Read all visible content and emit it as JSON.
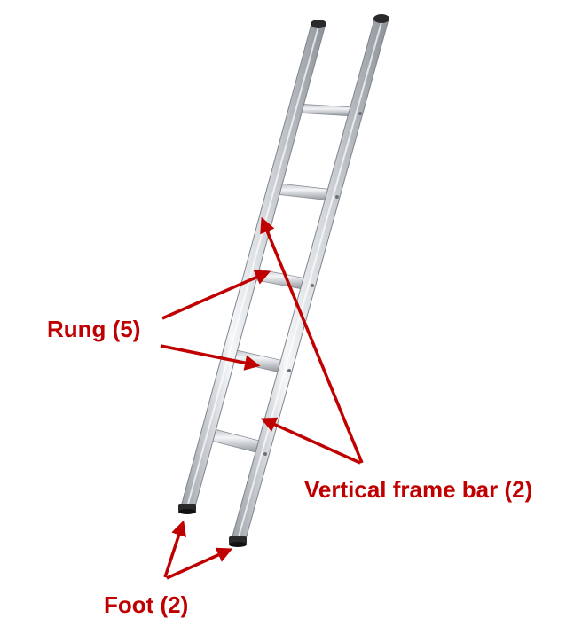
{
  "labels": {
    "rung": "Rung (5)",
    "frame": "Vertical frame bar (2)",
    "foot": "Foot (2)"
  },
  "colors": {
    "annotation": "#c00000",
    "background": "#ffffff",
    "aluminum_light": "#f2f4f6",
    "aluminum_mid": "#c9cdd2",
    "aluminum_dark": "#8d9299",
    "rubber_cap": "#222222"
  },
  "parts": {
    "rungs": 5,
    "frame_bars": 2,
    "feet": 2
  }
}
